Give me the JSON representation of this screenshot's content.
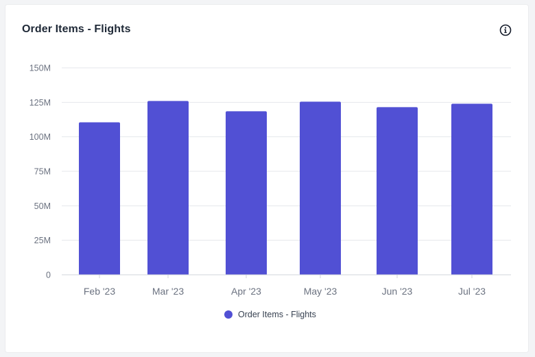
{
  "card": {
    "title": "Order Items - Flights"
  },
  "icons": {
    "info": "info-icon"
  },
  "colors": {
    "bar": "#5150d4",
    "grid": "#e5e7eb",
    "axis_text": "#6b7280"
  },
  "chart_data": {
    "type": "bar",
    "categories": [
      "Feb '23",
      "Mar '23",
      "Apr '23",
      "May '23",
      "Jun '23",
      "Jul '23"
    ],
    "series": [
      {
        "name": "Order Items - Flights",
        "values": [
          110500000,
          126000000,
          118500000,
          125500000,
          121500000,
          124000000
        ]
      }
    ],
    "ylim": [
      0,
      150000000
    ],
    "yticks": [
      0,
      25000000,
      50000000,
      75000000,
      100000000,
      125000000,
      150000000
    ],
    "ytick_labels": [
      "0",
      "25M",
      "50M",
      "75M",
      "100M",
      "125M",
      "150M"
    ],
    "grid": true,
    "legend_position": "bottom-center"
  }
}
